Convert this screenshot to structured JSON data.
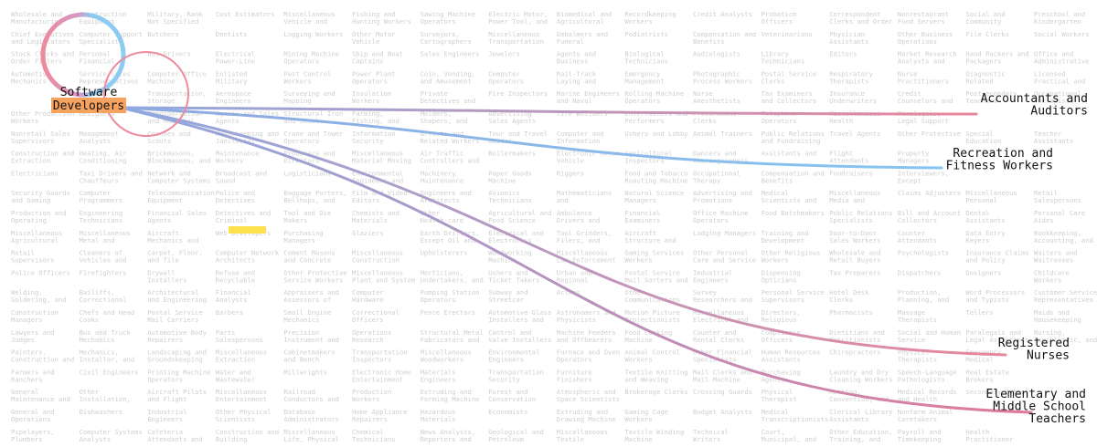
{
  "source": {
    "lines": [
      "Software",
      "Developers"
    ]
  },
  "targets": [
    {
      "lines": [
        "Accountants and",
        "Auditors"
      ],
      "color": "#e8869b"
    },
    {
      "lines": [
        "Recreation and",
        "Fitness Workers"
      ],
      "color": "#86c5f0"
    },
    {
      "lines": [
        "Registered",
        "Nurses"
      ],
      "color": "#e8869b"
    },
    {
      "lines": [
        "Elementary and",
        "Middle School",
        "Teachers"
      ],
      "color": "#e07a9a"
    }
  ],
  "grid": {
    "rows": [
      [
        "Wholesale and Manufacturing",
        "Construction Equipment",
        "Military, Rank Not Specified",
        "Cost Estimators",
        "Miscellaneous Vehicle and",
        "Fishing and Hunting Workers",
        "Sawing Machine Operators",
        "Electric Motor, Power Tool, and",
        "Biomedical and Agricultural",
        "Recordkeeping Workers",
        "Credit Analysts",
        "Probation Officers",
        "Correspondent Clerks and Order",
        "Nonrestaurant Food Servers",
        "Social and Community",
        "Preschool and Kindergarten"
      ],
      [
        "Chief Executives and Legislators",
        "Computer Support Specialists",
        "Butchers",
        "Dentists",
        "Logging Workers",
        "Other Motor Vehicle",
        "Surveyors, Cartographers",
        "Miscellaneous Transportation",
        "Embalmers and Funeral",
        "Podiatrists",
        "Compensation and Benefits",
        "Veterinarians",
        "Physician Assistants",
        "Other Business Operations",
        "File Clerks",
        "Social Workers"
      ],
      [
        "Stock Clerks and Order Fillers",
        "Personal Financial",
        "Bus Drivers",
        "Electrical Power-Line",
        "Mining Machine Operators",
        "Ship and Boat Captains",
        "Sales Engineers",
        "Jewelers",
        "Agents and Business",
        "Biological Technicians",
        "Audiologists",
        "Library Technicians",
        "Editors",
        "Market Research Analysts and",
        "Hand Packers and Packagers",
        "Office and Administrative"
      ],
      [
        "Automotive Mechanics",
        "Service Sales Representatives",
        "Computer Office Machine",
        "Enlisted Military",
        "Pest Control Workers",
        "Power Plant Operators",
        "Coin, Vending, and Amusement",
        "Computer Operators",
        "Rail-Track Laying and",
        "Emergency Management",
        "Photographic Process Workers",
        "Postal Service Clerks",
        "Respiratory Therapists",
        "Nurse Practitioners",
        "Diagnostic Related",
        "Licensed Practical and"
      ],
      [
        "",
        "",
        "Transportation, Storage",
        "Aerospace Engineers",
        "Surveying and Mapping",
        "Insulation Workers",
        "Private Detectives and",
        "Fire Inspectors",
        "Marine Engineers and Naval",
        "Rolling Machine Operators",
        "Nurse Anesthetists",
        "Tax Examiners and Collectors",
        "Insurance Underwriters",
        "Credit Counselors and",
        "Postsecondary Teachers",
        "Occupational Therapists"
      ],
      [
        "Other Production Workers",
        "Designers",
        "Transportation and Material",
        "Agents and Sales Agents",
        "Structural Iron and Steel",
        "Farming, Fishing, and",
        "Molders, Shapers, and",
        "Advertising Sales Agents",
        "Tire Builders",
        "Entertainers and Performers",
        "Procurement Clerks",
        "Telephone Operators",
        "Miscellaneous Health",
        "Paralegals, Legal Support"
      ],
      [
        "Nonretail Sales Supervisors",
        "Management Analysts",
        "Coaches and Scouts",
        "Housekeeping and Janitorial",
        "Crane and Tower Operators",
        "Information Security",
        "Artists and Related Workers",
        "Tour and Travel Guides",
        "Computer and Information",
        "Ushers and Lobby",
        "Animal Trainers",
        "Public Relations and Fundraising",
        "Travel Agents",
        "Other Protective",
        "Special Education",
        "Teacher Assistants"
      ],
      [
        "Construction and Extraction",
        "Heating, Air Conditioning",
        "Brickmasons, Blockmasons, and",
        "Maintenance Workers",
        "Producers and Directors",
        "Miscellaneous Material Moving",
        "Air Traffic Controllers and",
        "Boilermakers",
        "Electronic Motor Vehicle",
        "Agricultural Inspectors",
        "Dancers and Choreographers",
        "Assistants and",
        "Flight Attendants",
        "Property Managers"
      ],
      [
        "Electricians",
        "Taxi Drivers and Chauffeurs",
        "Network and Computer Systems",
        "Broadcast and Sound",
        "Logisticians",
        "Environmental Engineers and",
        "Machinery Maintenance",
        "Paper Goods Machine",
        "Riggers",
        "Food and Tobacco Roasting Machine",
        "Occupational Therapy",
        "Compensation and Benefits",
        "Fundraisers",
        "Interviewers, Except"
      ],
      [
        "Security Guards and Gaming",
        "Computer Programmers",
        "Telecommunication Equipment",
        "Police and Detectives",
        "Baggage Porters, Bellhops, and",
        "Film and Video Editors",
        "Engineers and Architects",
        "Avionics Technicians",
        "Mathematicians and",
        "Natural Science Managers",
        "Advertising and Promotions",
        "Medical Scientists and",
        "Miscellaneous Media and",
        "Claims Adjusters",
        "Miscellaneous Personal",
        "Retail Salespersons"
      ],
      [
        "Production and Operating",
        "Engineering Technicians",
        "Financial Sales Agents",
        "Detectives and Criminal",
        "Tool and Die Makers",
        "Chemists and Materials",
        "Other Health-care",
        "Agricultural and Food Science",
        "Ambulance Drivers and",
        "Financial Examiners",
        "Office Machine Operators",
        "Food Batchmakers",
        "Public Relations Specialists",
        "Bill and Account Collectors",
        "Dental Assistants",
        "Personal Care Aides"
      ],
      [
        "Miscellaneous Agricultural",
        "Miscellaneous Metal and",
        "Aircraft Mechanics and",
        "Web Developers",
        "Purchasing Managers",
        "Glaziers",
        "Earth Drillers, Except Oil and",
        "Electrical and Electronics",
        "Tool Grinders, Filers, and",
        "Aircraft Structure and",
        "Lodging Managers",
        "Training and Development",
        "Door-to-Door Sales Workers",
        "Counter Attendants",
        "Data Entry Keyers",
        "Bookkeeping, Accounting, and"
      ],
      [
        "Retail Supervisors",
        "Cleaners of Vehicles and",
        "Carpet, Floor, and Tile",
        "Computer Network Architects",
        "Cement Masons and Concrete",
        "Miscellaneous Construction",
        "Upholsterers",
        "Woodworking Machine",
        "Miscellaneous Law Enforcement",
        "Gaming Services Workers",
        "Other Personal Care and Service",
        "Other Religious Workers",
        "Wholesale and Retail Buyers",
        "Psychologists",
        "Insurance Claims and Policy",
        "Waiters and Waitresses"
      ],
      [
        "Police Officers",
        "Firefighters",
        "Drywall Installers",
        "Refuse and Recyclable",
        "Other Protective Service Workers",
        "Miscellaneous Plant and System",
        "Morticians, Undertakers, and",
        "Ushers and Ticket Takers",
        "Urban and Regional",
        "Postal Service Mail Sorters and",
        "Industrial Engineers",
        "Dispensing Opticians",
        "Tax Preparers",
        "Dispatchers",
        "Designers",
        "Childcare Workers"
      ],
      [
        "Welding, Soldering, and",
        "Bailiffs, Correctional",
        "Architectural and Engineering",
        "Financial Analysts",
        "Appraisers and Assessors of",
        "Computer Hardware",
        "Pumping Station Operators",
        "Subway and Streetcar",
        "Actors",
        "Other Communications",
        "Survey Researchers and",
        "Personal Service Supervisors",
        "Hotel Desk Clerks",
        "Production, Planning, and",
        "Word Processors and Typists",
        "Customer Service Representatives"
      ],
      [
        "Construction Managers",
        "Chefs and Head Cooks",
        "Postal Service Mail Carriers",
        "Barbers",
        "Small Engine Mechanics",
        "Correctional Officers",
        "Fence Erectors",
        "Automotive Glass Installers and",
        "Astronomers and Physicists",
        "Motion Picture Projectionists",
        "Miscellaneous Electrical and",
        "Directors, Religious",
        "Pharmacists",
        "Massage Therapists",
        "Tellers",
        "Maids and Housekeeping"
      ],
      [
        "Lawyers and Judges",
        "Bus and Truck Mechanics",
        "Automotive Body Repairers",
        "Parts Salespersons",
        "Precision Instrument and",
        "Operations Research",
        "Structural Metal Fabricators and",
        "Control and Valve Installers",
        "Machine Feeders and Offbearers",
        "Food Cooking Machine",
        "Counter and Rental Clerks",
        "Compliance Officers",
        "Dietitians and Nutritionists",
        "Social and Human Service",
        "Paralegals and Legal Assistants",
        "Nursing, Psychiatric, and"
      ],
      [
        "Painters, Construction and",
        "Mechanics, Installer, and",
        "Landscaping and Groundskeeping",
        "Miscellaneous Extraction",
        "Cabinetmakers and Bench",
        "Transportation Inspectors",
        "Miscellaneous Woodworkers",
        "Environmental Engineers",
        "Furnace and Oven Operators",
        "Animal Control Workers",
        "Other Financial Specialists",
        "Human Resources Assistants",
        "Chiropractors",
        "Physical Therapists",
        "Emergency Medical"
      ],
      [
        "Farmers and Ranchers",
        "Civil Engineers",
        "Printing Machine Operators",
        "Water and Wastewater",
        "Millwrights",
        "Electronic Home Entertainment",
        "Materials Engineers",
        "Transportation Security",
        "Furniture Finishers",
        "Textile Knitting and Weaving",
        "Mail Clerks and Mail Machine",
        "Purchasing Agents",
        "Laundry and Dry Cleaning Workers",
        "Speech-Language Pathologists",
        "Real Estate Brokers"
      ],
      [
        "General Maintenance and",
        "Other Installation,",
        "Aircraft Pilots and Flight",
        "Miscellaneous Entertainment",
        "Railroad Conductors and",
        "Production Workers",
        "Extruding and Forming Machine",
        "Forest and Conservation",
        "Atmospheric and Space Scientists",
        "Brokerage Clerks",
        "Crossing Guards",
        "Physical Therapist",
        "Meeting, Convention, and",
        "Medical Records and Health",
        "Secondary School"
      ],
      [
        "General and Operations",
        "Dishwashers",
        "Industrial Engineers",
        "Other Physical Scientists",
        "Database Administrators",
        "Home Appliance Repairers",
        "Hazardous Materials",
        "Economists",
        "Extruding and Drawing Machine",
        "Gaming Cage Workers",
        "Budget Analysts",
        "Medical Transcriptionists",
        "Clerical Library Assistants",
        "Nonfarm Animal Caretakers"
      ],
      [
        "Pipelayers, Plumbers",
        "Computer Systems Analysts",
        "Cafeteria Attendants and",
        "Construction and Building",
        "Miscellaneous Life, Physical",
        "Chemical Technicians",
        "News Analysts, Reporters and",
        "Geological and Petroleum",
        "Miscellaneous Textile",
        "Textile Winding Machine",
        "Technical Writers",
        "Court, Municipal, and",
        "Other Education, Training, and",
        "Payroll and Timekeeping",
        "Health Practitioner"
      ]
    ]
  }
}
